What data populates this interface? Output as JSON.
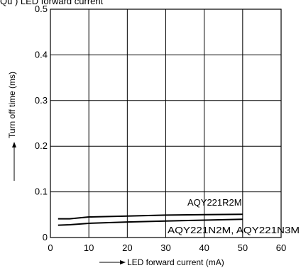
{
  "title_partial": "Qu            ) LED forward current",
  "chart_data": {
    "type": "line",
    "xlabel": "LED forward current (mA)",
    "ylabel": "Turn off time (ms)",
    "xlim": [
      0,
      60
    ],
    "ylim": [
      0,
      0.5
    ],
    "x_ticks": [
      "0",
      "10",
      "20",
      "30",
      "40",
      "50",
      "60"
    ],
    "y_ticks": [
      "0",
      "0.1",
      "0.2",
      "0.3",
      "0.4",
      "0.5"
    ],
    "x_tick_values": [
      0,
      10,
      20,
      30,
      40,
      50,
      60
    ],
    "y_tick_values": [
      0,
      0.1,
      0.2,
      0.3,
      0.4,
      0.5
    ],
    "grid": true,
    "series": [
      {
        "name": "AQY221R2M",
        "x": [
          2,
          5,
          10,
          20,
          30,
          40,
          50
        ],
        "y": [
          0.041,
          0.041,
          0.045,
          0.047,
          0.049,
          0.05,
          0.051
        ]
      },
      {
        "name": "AQY221N2M, AQY221N3M",
        "x": [
          2,
          5,
          10,
          20,
          30,
          40,
          50
        ],
        "y": [
          0.027,
          0.028,
          0.031,
          0.034,
          0.036,
          0.038,
          0.04
        ]
      }
    ]
  }
}
